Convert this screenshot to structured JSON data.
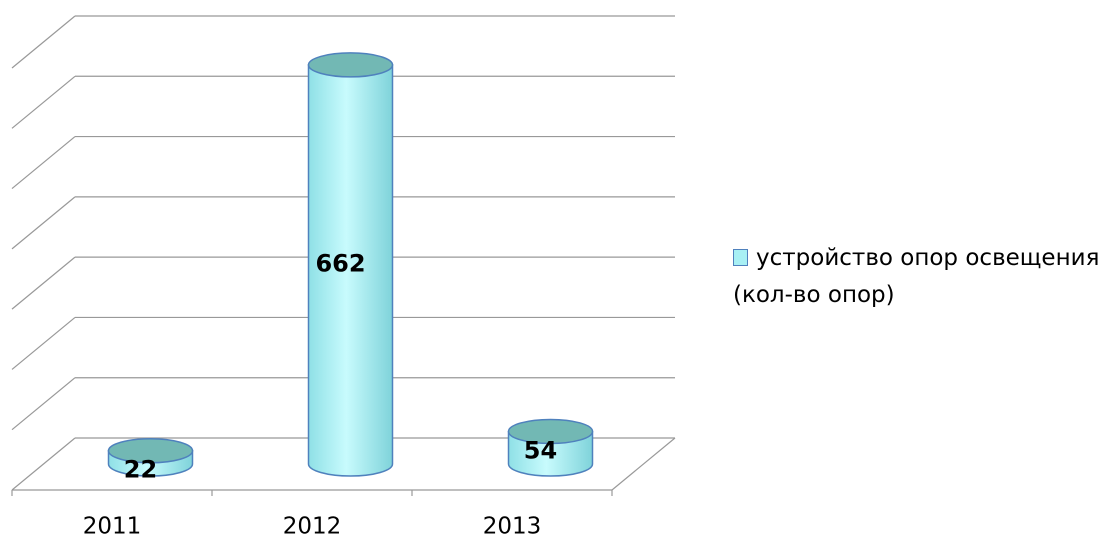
{
  "chart_data": {
    "type": "bar",
    "categories": [
      "2011",
      "2012",
      "2013"
    ],
    "series": [
      {
        "name": "устройство опор освещения (кол-во опор)",
        "color": "#a8f0f4",
        "values": [
          22,
          662,
          54
        ]
      }
    ],
    "ylim": [
      0,
      700
    ],
    "yticks": [
      0,
      100,
      200,
      300,
      400,
      500,
      600,
      700
    ],
    "grid": true,
    "legend": "right"
  }
}
